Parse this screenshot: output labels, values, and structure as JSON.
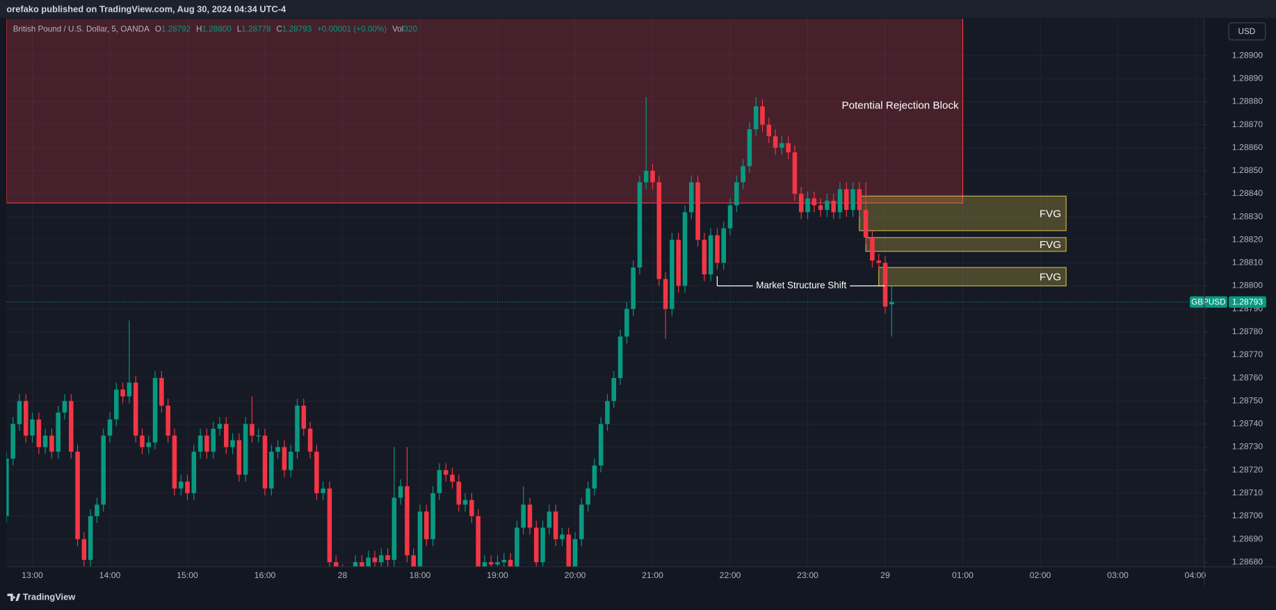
{
  "header": {
    "publisher": "orefako published on TradingView.com, Aug 30, 2024 04:34 UTC-4"
  },
  "legend": {
    "symbol": "British Pound / U.S. Dollar, 5, OANDA",
    "ohlc": [
      {
        "label": "O",
        "value": "1.28792"
      },
      {
        "label": "H",
        "value": "1.28800"
      },
      {
        "label": "L",
        "value": "1.28778"
      },
      {
        "label": "C",
        "value": "1.28793"
      }
    ],
    "change": "+0.00001 (+0.00%)",
    "volume_label": "Vol",
    "volume": "320"
  },
  "currency": "USD",
  "footer": "TradingView",
  "chart_data": {
    "type": "candlestick",
    "x": [
      760,
      765,
      770,
      775,
      780,
      785,
      790,
      795,
      800,
      805,
      810,
      815,
      820,
      825,
      830,
      835,
      840,
      845,
      850,
      855,
      860,
      865,
      870,
      875,
      880,
      885,
      890,
      895,
      900,
      905,
      910,
      915,
      920,
      925,
      930,
      935,
      940,
      945,
      950,
      955,
      960,
      965,
      970,
      975,
      980,
      985,
      990,
      995,
      1000,
      1005,
      1010,
      1015,
      1020,
      1025,
      1030,
      1035,
      1040,
      1045,
      1050,
      1055,
      1060,
      1065,
      1070,
      1075,
      1080,
      1085,
      1090,
      1095,
      1100,
      1105,
      1110,
      1115,
      1120,
      1125,
      1130,
      1135,
      1140,
      1145,
      1150,
      1155,
      1160,
      1165,
      1170,
      1175,
      1180,
      1185,
      1190,
      1195,
      1200,
      1205,
      1210,
      1215,
      1220,
      1225,
      1230,
      1235,
      1240,
      1245,
      1250,
      1255,
      1260,
      1265,
      1270,
      1275,
      1280,
      1285,
      1290,
      1295,
      1300,
      1305,
      1310,
      1315,
      1320,
      1325,
      1330,
      1335,
      1340,
      1345,
      1350,
      1355,
      1360,
      1365,
      1370,
      1375,
      1380,
      1385,
      1390,
      1395,
      1400,
      1405,
      1410,
      1415,
      1420,
      1425,
      1430,
      1435,
      1440,
      1445
    ],
    "open": [
      1.287,
      1.28725,
      1.2874,
      1.2875,
      1.28735,
      1.28742,
      1.2873,
      1.28735,
      1.28728,
      1.28745,
      1.2875,
      1.28728,
      1.2869,
      1.28681,
      1.287,
      1.28705,
      1.28735,
      1.28742,
      1.28755,
      1.28752,
      1.28758,
      1.28735,
      1.2873,
      1.28732,
      1.2876,
      1.28748,
      1.28735,
      1.28712,
      1.28715,
      1.2871,
      1.28728,
      1.28735,
      1.28728,
      1.28738,
      1.2874,
      1.2873,
      1.28733,
      1.28718,
      1.2874,
      1.28735,
      1.28735,
      1.28712,
      1.28728,
      1.2873,
      1.2872,
      1.28728,
      1.28748,
      1.28738,
      1.28728,
      1.2871,
      1.28712,
      1.2868,
      1.28676,
      1.2867,
      1.28672,
      1.2868,
      1.28678,
      1.28682,
      1.2868,
      1.28683,
      1.28681,
      1.28708,
      1.28713,
      1.28683,
      1.28676,
      1.28702,
      1.2869,
      1.2871,
      1.2872,
      1.28718,
      1.28715,
      1.28705,
      1.28707,
      1.287,
      1.28675,
      1.2868,
      1.28679,
      1.2868,
      1.28681,
      1.28676,
      1.28695,
      1.28705,
      1.28695,
      1.2868,
      1.28695,
      1.28702,
      1.2869,
      1.28692,
      1.28676,
      1.2869,
      1.28705,
      1.28712,
      1.28722,
      1.2874,
      1.2875,
      1.2876,
      1.28778,
      1.2879,
      1.28808,
      1.28845,
      1.2885,
      1.28845,
      1.28803,
      1.2879,
      1.2882,
      1.288,
      1.28832,
      1.28845,
      1.2882,
      1.28805,
      1.28822,
      1.2881,
      1.28825,
      1.28835,
      1.28845,
      1.28852,
      1.28868,
      1.28878,
      1.2887,
      1.28865,
      1.2886,
      1.28862,
      1.28858,
      1.2884,
      1.28832,
      1.28838,
      1.28835,
      1.28833,
      1.28837,
      1.28832,
      1.28842,
      1.28833,
      1.28842,
      1.28833,
      1.28821,
      1.28811,
      1.2881,
      1.28792
    ],
    "high": [
      1.28728,
      1.28743,
      1.28753,
      1.28753,
      1.28745,
      1.28745,
      1.28738,
      1.28738,
      1.28748,
      1.28753,
      1.28753,
      1.28731,
      1.28693,
      1.28703,
      1.28708,
      1.28738,
      1.28745,
      1.28758,
      1.28758,
      1.28785,
      1.28761,
      1.28738,
      1.28735,
      1.28763,
      1.28763,
      1.28751,
      1.28738,
      1.28718,
      1.28718,
      1.28731,
      1.28738,
      1.28738,
      1.28741,
      1.28743,
      1.28743,
      1.28736,
      1.28736,
      1.28743,
      1.28752,
      1.28738,
      1.28738,
      1.28731,
      1.28733,
      1.28733,
      1.28731,
      1.28751,
      1.28751,
      1.28741,
      1.28731,
      1.28715,
      1.28715,
      1.28683,
      1.28679,
      1.28675,
      1.28683,
      1.28683,
      1.28685,
      1.28685,
      1.28686,
      1.28686,
      1.2873,
      1.28716,
      1.2873,
      1.28686,
      1.28705,
      1.28705,
      1.28713,
      1.28723,
      1.28723,
      1.28721,
      1.28718,
      1.2871,
      1.2871,
      1.28703,
      1.28683,
      1.28683,
      1.28683,
      1.28684,
      1.28684,
      1.28698,
      1.28713,
      1.28708,
      1.28698,
      1.28698,
      1.28705,
      1.28705,
      1.28695,
      1.28695,
      1.28693,
      1.28708,
      1.28715,
      1.28725,
      1.28743,
      1.28753,
      1.28763,
      1.28781,
      1.28793,
      1.28811,
      1.28848,
      1.28882,
      1.28853,
      1.28848,
      1.28806,
      1.28823,
      1.28823,
      1.28835,
      1.28848,
      1.28848,
      1.28823,
      1.28825,
      1.28825,
      1.28828,
      1.28838,
      1.28848,
      1.28855,
      1.28871,
      1.28882,
      1.28881,
      1.28873,
      1.28868,
      1.28865,
      1.28865,
      1.28861,
      1.28843,
      1.28841,
      1.28841,
      1.28838,
      1.2884,
      1.2884,
      1.28845,
      1.28845,
      1.28845,
      1.28845,
      1.28845,
      1.28824,
      1.28814,
      1.28813,
      1.288
    ],
    "low": [
      1.28697,
      1.28722,
      1.28737,
      1.28732,
      1.28732,
      1.28727,
      1.28727,
      1.28725,
      1.28725,
      1.28742,
      1.28725,
      1.28687,
      1.28678,
      1.28678,
      1.28697,
      1.28702,
      1.28732,
      1.28739,
      1.28749,
      1.28749,
      1.28732,
      1.28727,
      1.28727,
      1.28729,
      1.28745,
      1.28732,
      1.28709,
      1.28709,
      1.28707,
      1.28707,
      1.28725,
      1.28725,
      1.28725,
      1.28735,
      1.28727,
      1.28727,
      1.28715,
      1.28715,
      1.28732,
      1.28732,
      1.28709,
      1.28709,
      1.28725,
      1.28717,
      1.28717,
      1.28725,
      1.28735,
      1.28725,
      1.28707,
      1.28707,
      1.28677,
      1.28673,
      1.28667,
      1.28667,
      1.28669,
      1.28675,
      1.28675,
      1.28677,
      1.28677,
      1.28678,
      1.28678,
      1.28705,
      1.2868,
      1.28673,
      1.28673,
      1.28687,
      1.28687,
      1.28707,
      1.28715,
      1.28712,
      1.28702,
      1.28702,
      1.28697,
      1.28672,
      1.28672,
      1.28676,
      1.28676,
      1.28677,
      1.28673,
      1.28673,
      1.28692,
      1.28692,
      1.28677,
      1.28677,
      1.28692,
      1.28687,
      1.28687,
      1.28673,
      1.28673,
      1.28687,
      1.28702,
      1.28709,
      1.28719,
      1.28737,
      1.28747,
      1.28757,
      1.28775,
      1.28787,
      1.28805,
      1.28842,
      1.28842,
      1.288,
      1.28777,
      1.28787,
      1.28797,
      1.28797,
      1.28829,
      1.28817,
      1.28802,
      1.28802,
      1.28807,
      1.28807,
      1.28822,
      1.28832,
      1.28842,
      1.28849,
      1.28865,
      1.28867,
      1.28862,
      1.28857,
      1.28857,
      1.28855,
      1.28837,
      1.28829,
      1.28829,
      1.28832,
      1.2883,
      1.2883,
      1.28829,
      1.28829,
      1.2883,
      1.2883,
      1.2883,
      1.28818,
      1.28808,
      1.28807,
      1.28788,
      1.28778
    ],
    "close": [
      1.28725,
      1.2874,
      1.2875,
      1.28735,
      1.28742,
      1.2873,
      1.28735,
      1.28728,
      1.28745,
      1.2875,
      1.28728,
      1.2869,
      1.28681,
      1.287,
      1.28705,
      1.28735,
      1.28742,
      1.28755,
      1.28752,
      1.28758,
      1.28735,
      1.2873,
      1.28732,
      1.2876,
      1.28748,
      1.28735,
      1.28712,
      1.28715,
      1.2871,
      1.28728,
      1.28735,
      1.28728,
      1.28738,
      1.2874,
      1.2873,
      1.28733,
      1.28718,
      1.2874,
      1.28735,
      1.28735,
      1.28712,
      1.28728,
      1.2873,
      1.2872,
      1.28728,
      1.28748,
      1.28738,
      1.28728,
      1.2871,
      1.28712,
      1.2868,
      1.28676,
      1.2867,
      1.28672,
      1.2868,
      1.28678,
      1.28682,
      1.2868,
      1.28683,
      1.28681,
      1.28708,
      1.28713,
      1.28683,
      1.28676,
      1.28702,
      1.2869,
      1.2871,
      1.2872,
      1.28718,
      1.28715,
      1.28705,
      1.28707,
      1.287,
      1.28675,
      1.2868,
      1.28679,
      1.2868,
      1.28681,
      1.28676,
      1.28695,
      1.28705,
      1.28695,
      1.2868,
      1.28695,
      1.28702,
      1.2869,
      1.28692,
      1.28676,
      1.2869,
      1.28705,
      1.28712,
      1.28722,
      1.2874,
      1.2875,
      1.2876,
      1.28778,
      1.2879,
      1.28808,
      1.28845,
      1.2885,
      1.28845,
      1.28803,
      1.2879,
      1.2882,
      1.288,
      1.28832,
      1.28845,
      1.2882,
      1.28805,
      1.28822,
      1.2881,
      1.28825,
      1.28835,
      1.28845,
      1.28852,
      1.28868,
      1.28878,
      1.2887,
      1.28865,
      1.2886,
      1.28862,
      1.28858,
      1.2884,
      1.28832,
      1.28838,
      1.28835,
      1.28833,
      1.28837,
      1.28832,
      1.28842,
      1.28833,
      1.28842,
      1.28833,
      1.28821,
      1.28811,
      1.2881,
      1.28791,
      1.28793
    ],
    "xlim": [
      760,
      1687
    ],
    "ylim": [
      1.28678,
      1.28916
    ],
    "xticks": [
      {
        "value": 780,
        "label": "13:00"
      },
      {
        "value": 840,
        "label": "14:00"
      },
      {
        "value": 900,
        "label": "15:00"
      },
      {
        "value": 960,
        "label": "16:00"
      },
      {
        "value": 1020,
        "label": "28"
      },
      {
        "value": 1080,
        "label": "18:00"
      },
      {
        "value": 1140,
        "label": "19:00"
      },
      {
        "value": 1200,
        "label": "20:00"
      },
      {
        "value": 1260,
        "label": "21:00"
      },
      {
        "value": 1320,
        "label": "22:00"
      },
      {
        "value": 1380,
        "label": "23:00"
      },
      {
        "value": 1440,
        "label": "29"
      },
      {
        "value": 1500,
        "label": "01:00"
      },
      {
        "value": 1560,
        "label": "02:00"
      },
      {
        "value": 1620,
        "label": "03:00"
      },
      {
        "value": 1680,
        "label": "04:00"
      }
    ],
    "yticks": [
      {
        "value": 1.2868,
        "label": "1.28680"
      },
      {
        "value": 1.2869,
        "label": "1.28690"
      },
      {
        "value": 1.287,
        "label": "1.28700"
      },
      {
        "value": 1.2871,
        "label": "1.28710"
      },
      {
        "value": 1.2872,
        "label": "1.28720"
      },
      {
        "value": 1.2873,
        "label": "1.28730"
      },
      {
        "value": 1.2874,
        "label": "1.28740"
      },
      {
        "value": 1.2875,
        "label": "1.28750"
      },
      {
        "value": 1.2876,
        "label": "1.28760"
      },
      {
        "value": 1.2877,
        "label": "1.28770"
      },
      {
        "value": 1.2878,
        "label": "1.28780"
      },
      {
        "value": 1.2879,
        "label": "1.28790"
      },
      {
        "value": 1.288,
        "label": "1.28800"
      },
      {
        "value": 1.2881,
        "label": "1.28810"
      },
      {
        "value": 1.2882,
        "label": "1.28820"
      },
      {
        "value": 1.2883,
        "label": "1.28830"
      },
      {
        "value": 1.2884,
        "label": "1.28840"
      },
      {
        "value": 1.2885,
        "label": "1.28850"
      },
      {
        "value": 1.2886,
        "label": "1.28860"
      },
      {
        "value": 1.2887,
        "label": "1.28870"
      },
      {
        "value": 1.2888,
        "label": "1.28880"
      },
      {
        "value": 1.2889,
        "label": "1.28890"
      },
      {
        "value": 1.289,
        "label": "1.28900"
      }
    ],
    "grid": true,
    "colors": {
      "up": "#089981",
      "down": "#f23645"
    },
    "rejection_block": {
      "label": "Potential Rejection Block",
      "x": [
        760,
        1500
      ],
      "y": [
        1.28836,
        1.2892
      ],
      "color": "#f23645"
    },
    "fvg_zones": [
      {
        "label": "FVG",
        "x": [
          1420,
          1580
        ],
        "y": [
          1.28824,
          1.28839
        ],
        "color": "#c8b446"
      },
      {
        "label": "FVG",
        "x": [
          1425,
          1580
        ],
        "y": [
          1.28815,
          1.28821
        ],
        "color": "#c8b446"
      },
      {
        "label": "FVG",
        "x": [
          1435,
          1580
        ],
        "y": [
          1.288,
          1.28808
        ],
        "color": "#c8b446"
      }
    ],
    "annotations": [
      {
        "label": "Market Structure Shift",
        "x": [
          1310,
          1440
        ],
        "y": 1.288
      }
    ],
    "last_price": {
      "symbol": "GBPUSD",
      "value": 1.28793,
      "color": "#089981"
    }
  }
}
